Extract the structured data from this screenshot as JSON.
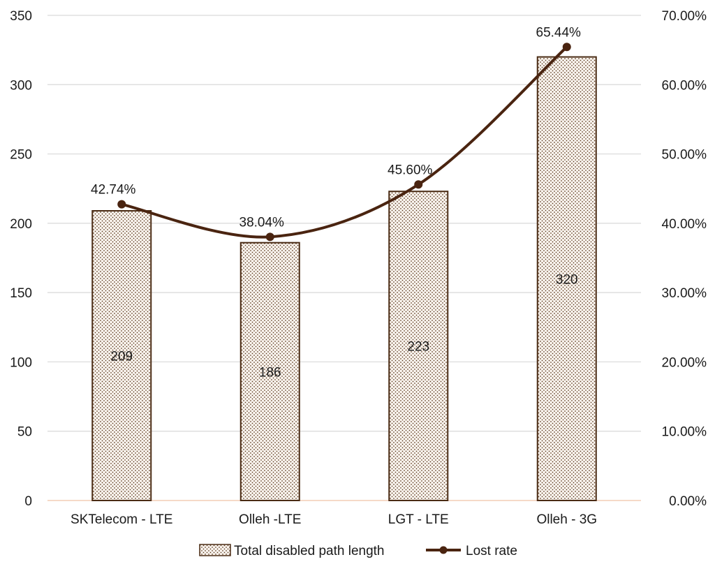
{
  "chart_data": {
    "type": "bar+line",
    "categories": [
      "SKTelecom - LTE",
      "Olleh -LTE",
      "LGT - LTE",
      "Olleh - 3G"
    ],
    "series": [
      {
        "name": "Total disabled path length",
        "type": "bar",
        "axis": "left",
        "values": [
          209,
          186,
          223,
          320
        ],
        "labels": [
          "209",
          "186",
          "223",
          "320"
        ]
      },
      {
        "name": "Lost rate",
        "type": "line",
        "axis": "right",
        "values": [
          42.74,
          38.04,
          45.6,
          65.44
        ],
        "labels": [
          "42.74%",
          "38.04%",
          "45.60%",
          "65.44%"
        ]
      }
    ],
    "left_axis": {
      "ylim": [
        0,
        350
      ],
      "ticks": [
        0,
        50,
        100,
        150,
        200,
        250,
        300,
        350
      ],
      "tick_labels": [
        "0",
        "50",
        "100",
        "150",
        "200",
        "250",
        "300",
        "350"
      ]
    },
    "right_axis": {
      "ylim": [
        0,
        70
      ],
      "ticks": [
        0,
        10,
        20,
        30,
        40,
        50,
        60,
        70
      ],
      "tick_labels": [
        "0.00%",
        "10.00%",
        "20.00%",
        "30.00%",
        "40.00%",
        "50.00%",
        "60.00%",
        "70.00%"
      ]
    },
    "grid": true,
    "legend": "bottom",
    "colors": {
      "bar_border": "#4a2b14",
      "bar_dots": "#5a3a1e",
      "bar_fill": "#fbf5ef",
      "line": "#4a2410",
      "grid": "#d9d9d9",
      "baseline": "#f6d9c8"
    }
  }
}
